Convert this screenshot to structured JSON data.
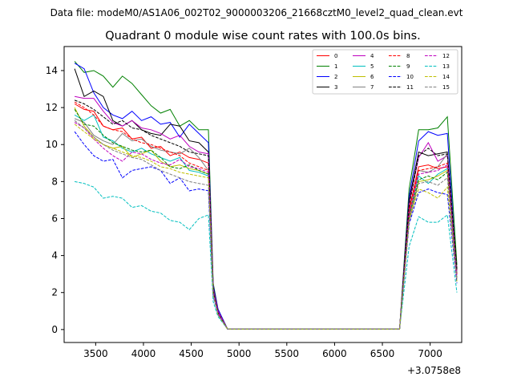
{
  "chart_data": {
    "type": "line",
    "suptitle": "Data file: modeM0/AS1A06_002T02_9000003206_21668cztM0_level2_quad_clean.evt",
    "title": "Quadrant 0 module wise count rates with 100.0s bins.",
    "xlabel": "",
    "ylabel": "",
    "x_offset_label": "+3.0758e8",
    "xlim": [
      3170,
      7330
    ],
    "ylim": [
      -0.7,
      15.3
    ],
    "xticks": [
      3500,
      4000,
      4500,
      5000,
      5500,
      6000,
      6500,
      7000
    ],
    "yticks": [
      0,
      2,
      4,
      6,
      8,
      10,
      12,
      14
    ],
    "x": [
      3280,
      3380,
      3480,
      3580,
      3680,
      3780,
      3880,
      3980,
      4080,
      4180,
      4280,
      4380,
      4480,
      4580,
      4680,
      4730,
      4780,
      4880,
      6680,
      6780,
      6880,
      6980,
      7080,
      7180,
      7280
    ],
    "series": [
      {
        "name": "0",
        "color": "#ff0000",
        "dash": "solid",
        "values": [
          12.2,
          11.9,
          11.8,
          11.0,
          10.8,
          10.9,
          10.3,
          10.4,
          9.8,
          9.9,
          9.4,
          9.6,
          9.3,
          9.2,
          9.0,
          2.0,
          0.9,
          0.02,
          0.02,
          6.5,
          8.8,
          8.9,
          8.7,
          8.8,
          3.2
        ]
      },
      {
        "name": "1",
        "color": "#008000",
        "dash": "solid",
        "values": [
          14.5,
          13.9,
          14.0,
          13.7,
          13.1,
          13.7,
          13.3,
          12.7,
          12.1,
          11.7,
          11.9,
          11.0,
          11.3,
          10.8,
          10.8,
          2.5,
          1.1,
          0.02,
          0.02,
          7.6,
          10.8,
          10.8,
          10.9,
          11.5,
          3.5
        ]
      },
      {
        "name": "2",
        "color": "#0000ff",
        "dash": "solid",
        "values": [
          14.4,
          14.1,
          12.8,
          12.0,
          11.6,
          11.4,
          11.8,
          11.3,
          11.5,
          11.1,
          11.2,
          10.4,
          11.1,
          10.6,
          10.1,
          2.4,
          1.1,
          0.02,
          0.02,
          7.2,
          10.2,
          10.7,
          10.5,
          10.6,
          3.0
        ]
      },
      {
        "name": "3",
        "color": "#000000",
        "dash": "solid",
        "values": [
          14.1,
          12.6,
          12.9,
          12.6,
          11.3,
          11.0,
          11.3,
          10.8,
          10.6,
          10.5,
          11.1,
          11.0,
          10.2,
          10.1,
          9.6,
          2.3,
          1.0,
          0.02,
          0.02,
          7.0,
          9.6,
          9.4,
          9.5,
          9.6,
          3.3
        ]
      },
      {
        "name": "4",
        "color": "#bf00bf",
        "dash": "solid",
        "values": [
          12.6,
          12.5,
          12.5,
          11.8,
          11.2,
          11.0,
          11.3,
          10.9,
          10.8,
          10.6,
          10.3,
          10.5,
          9.9,
          9.6,
          9.5,
          2.2,
          1.0,
          0.02,
          0.02,
          6.8,
          9.3,
          10.1,
          9.1,
          9.4,
          3.0
        ]
      },
      {
        "name": "5",
        "color": "#00bfbf",
        "dash": "solid",
        "values": [
          11.6,
          11.3,
          11.6,
          10.4,
          10.2,
          9.8,
          9.6,
          9.8,
          9.5,
          9.3,
          9.1,
          9.3,
          8.6,
          8.5,
          8.3,
          2.0,
          0.9,
          0.02,
          0.02,
          6.2,
          8.3,
          7.9,
          8.4,
          8.7,
          2.8
        ]
      },
      {
        "name": "6",
        "color": "#bfbf00",
        "dash": "solid",
        "values": [
          12.0,
          11.0,
          10.4,
          10.0,
          9.8,
          9.9,
          9.3,
          9.5,
          9.7,
          9.1,
          8.8,
          8.9,
          8.7,
          8.6,
          8.4,
          2.0,
          0.9,
          0.02,
          0.02,
          6.0,
          8.0,
          8.1,
          8.3,
          8.6,
          2.7
        ]
      },
      {
        "name": "7",
        "color": "#808080",
        "dash": "solid",
        "values": [
          11.4,
          11.2,
          10.5,
          10.2,
          10.0,
          10.6,
          10.2,
          10.3,
          9.9,
          9.7,
          9.6,
          9.5,
          9.8,
          9.3,
          8.6,
          2.1,
          0.9,
          0.02,
          0.02,
          6.3,
          8.6,
          8.5,
          8.8,
          9.5,
          3.1
        ]
      },
      {
        "name": "8",
        "color": "#ff0000",
        "dash": "dashed",
        "values": [
          12.3,
          12.0,
          11.6,
          11.0,
          10.8,
          10.7,
          10.3,
          10.1,
          10.0,
          9.8,
          9.6,
          9.4,
          9.0,
          8.8,
          8.6,
          2.0,
          0.9,
          0.02,
          0.02,
          6.4,
          8.6,
          8.7,
          8.8,
          9.0,
          3.0
        ]
      },
      {
        "name": "9",
        "color": "#008000",
        "dash": "dashed",
        "values": [
          11.9,
          11.1,
          11.0,
          10.5,
          10.1,
          9.9,
          9.7,
          9.6,
          9.7,
          9.3,
          8.8,
          8.7,
          8.9,
          8.6,
          8.4,
          2.0,
          0.9,
          0.02,
          0.02,
          6.1,
          8.1,
          8.3,
          8.1,
          8.5,
          2.8
        ]
      },
      {
        "name": "10",
        "color": "#0000ff",
        "dash": "dashed",
        "values": [
          10.7,
          10.0,
          9.4,
          9.1,
          9.2,
          8.2,
          8.6,
          8.7,
          8.8,
          8.6,
          7.9,
          8.2,
          7.5,
          7.6,
          7.5,
          1.8,
          0.8,
          0.02,
          0.02,
          5.7,
          7.4,
          7.6,
          7.4,
          7.3,
          2.5
        ]
      },
      {
        "name": "11",
        "color": "#000000",
        "dash": "dashed",
        "values": [
          12.4,
          12.2,
          11.9,
          11.5,
          11.1,
          11.3,
          10.9,
          10.8,
          10.5,
          10.3,
          10.1,
          9.9,
          9.6,
          9.5,
          9.4,
          2.1,
          0.9,
          0.02,
          0.02,
          6.7,
          9.4,
          9.8,
          9.4,
          9.5,
          3.2
        ]
      },
      {
        "name": "12",
        "color": "#bf00bf",
        "dash": "dashed",
        "values": [
          11.2,
          10.9,
          10.3,
          9.8,
          9.4,
          9.1,
          9.6,
          9.5,
          9.2,
          9.0,
          8.9,
          9.2,
          8.8,
          8.7,
          8.5,
          2.0,
          0.9,
          0.02,
          0.02,
          6.1,
          8.4,
          8.5,
          8.6,
          8.9,
          2.8
        ]
      },
      {
        "name": "13",
        "color": "#00bfbf",
        "dash": "dashed",
        "values": [
          8.0,
          7.9,
          7.7,
          7.1,
          7.2,
          7.1,
          6.6,
          6.7,
          6.4,
          6.3,
          5.9,
          5.8,
          5.4,
          6.0,
          6.2,
          1.5,
          0.7,
          0.02,
          0.02,
          4.5,
          6.1,
          5.8,
          5.8,
          6.2,
          2.0
        ]
      },
      {
        "name": "14",
        "color": "#bfbf00",
        "dash": "dashed",
        "values": [
          11.1,
          10.7,
          10.3,
          10.0,
          9.8,
          9.6,
          9.4,
          9.3,
          9.1,
          8.8,
          8.7,
          8.5,
          8.4,
          8.3,
          8.2,
          1.9,
          0.8,
          0.02,
          0.02,
          5.9,
          7.6,
          7.4,
          7.1,
          7.7,
          2.6
        ]
      },
      {
        "name": "15",
        "color": "#808080",
        "dash": "dashed",
        "values": [
          11.3,
          10.9,
          10.4,
          10.0,
          9.7,
          9.5,
          9.3,
          9.2,
          8.9,
          8.6,
          8.4,
          8.2,
          8.0,
          7.9,
          7.8,
          1.9,
          0.8,
          0.02,
          0.02,
          5.8,
          7.9,
          8.0,
          7.8,
          8.2,
          2.7
        ]
      }
    ],
    "legend_loc": "upper-right",
    "legend_ncol": 4,
    "grid": false
  }
}
